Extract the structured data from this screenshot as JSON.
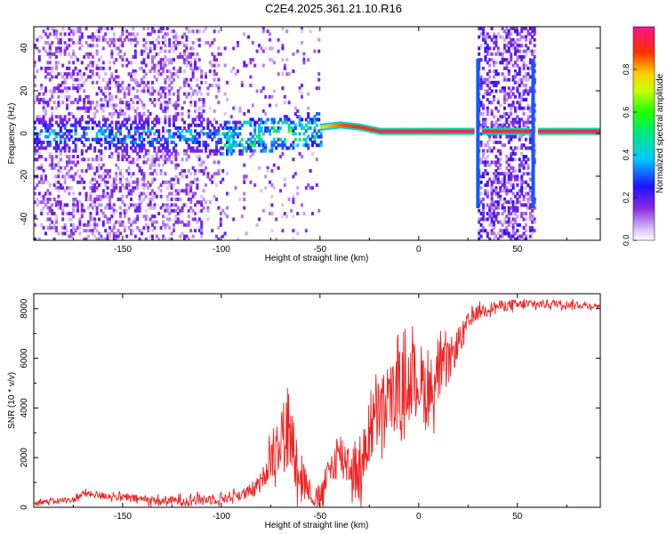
{
  "title": "C2E4.2025.361.21.10.R16",
  "chart_data": [
    {
      "type": "heatmap",
      "name": "spectrogram",
      "xlabel": "Height of straight line (km)",
      "ylabel": "Frequency (Hz)",
      "xlim": [
        -195,
        92
      ],
      "ylim": [
        -50,
        50
      ],
      "xticks": [
        -150,
        -100,
        -50,
        0,
        50
      ],
      "yticks": [
        -40,
        -20,
        0,
        20,
        40
      ],
      "colorbar": {
        "label": "Normalized spectral amplitude",
        "range": [
          0.0,
          1.0
        ],
        "ticks": [
          "0.0",
          "0.2",
          "0.4",
          "0.6",
          "0.8"
        ]
      },
      "ridge": {
        "description_points_x": [
          -180,
          -150,
          -110,
          -100,
          -80,
          -60,
          -50,
          -40,
          -30,
          -20,
          0,
          25,
          30,
          57,
          60,
          90
        ],
        "description_points_freq": [
          0,
          0,
          0,
          -2,
          0,
          2,
          3,
          4,
          3,
          1,
          1,
          1,
          1,
          1,
          1,
          1
        ],
        "description_points_amp": [
          0.35,
          0.25,
          0.3,
          0.45,
          0.55,
          0.6,
          0.75,
          0.85,
          0.9,
          0.95,
          0.95,
          0.95,
          0.95,
          0.95,
          0.95,
          0.95
        ]
      },
      "vertical_bands_x": [
        [
          30,
          58
        ]
      ]
    },
    {
      "type": "line",
      "name": "snr",
      "xlabel": "Height of straight line (km)",
      "ylabel": "SNR (10 * v/v)",
      "xlim": [
        -195,
        92
      ],
      "ylim": [
        0,
        8600
      ],
      "xticks": [
        -150,
        -100,
        -50,
        0,
        50
      ],
      "yticks": [
        0,
        2000,
        4000,
        6000,
        8000
      ],
      "color": "#ee2222",
      "trend_x": [
        -195,
        -175,
        -170,
        -130,
        -100,
        -85,
        -80,
        -75,
        -70,
        -65,
        -60,
        -55,
        -52,
        -50,
        -45,
        -40,
        -35,
        -30,
        -25,
        -20,
        -15,
        -10,
        -5,
        0,
        5,
        10,
        15,
        20,
        25,
        30,
        40,
        50,
        70,
        92
      ],
      "trend_y": [
        200,
        300,
        550,
        250,
        350,
        600,
        1000,
        2000,
        3000,
        2800,
        1500,
        600,
        150,
        400,
        1500,
        2200,
        1800,
        1200,
        3000,
        3800,
        4200,
        4800,
        5000,
        5200,
        4600,
        5300,
        5800,
        6600,
        7400,
        7900,
        8100,
        8150,
        8200,
        8100
      ],
      "noise_amplitude_x": [
        -195,
        -80,
        -70,
        -60,
        -55,
        -40,
        -30,
        -20,
        0,
        10,
        20,
        30,
        92
      ],
      "noise_amplitude_y": [
        100,
        250,
        1600,
        1200,
        300,
        900,
        1200,
        1500,
        1600,
        1200,
        600,
        250,
        120
      ]
    }
  ]
}
